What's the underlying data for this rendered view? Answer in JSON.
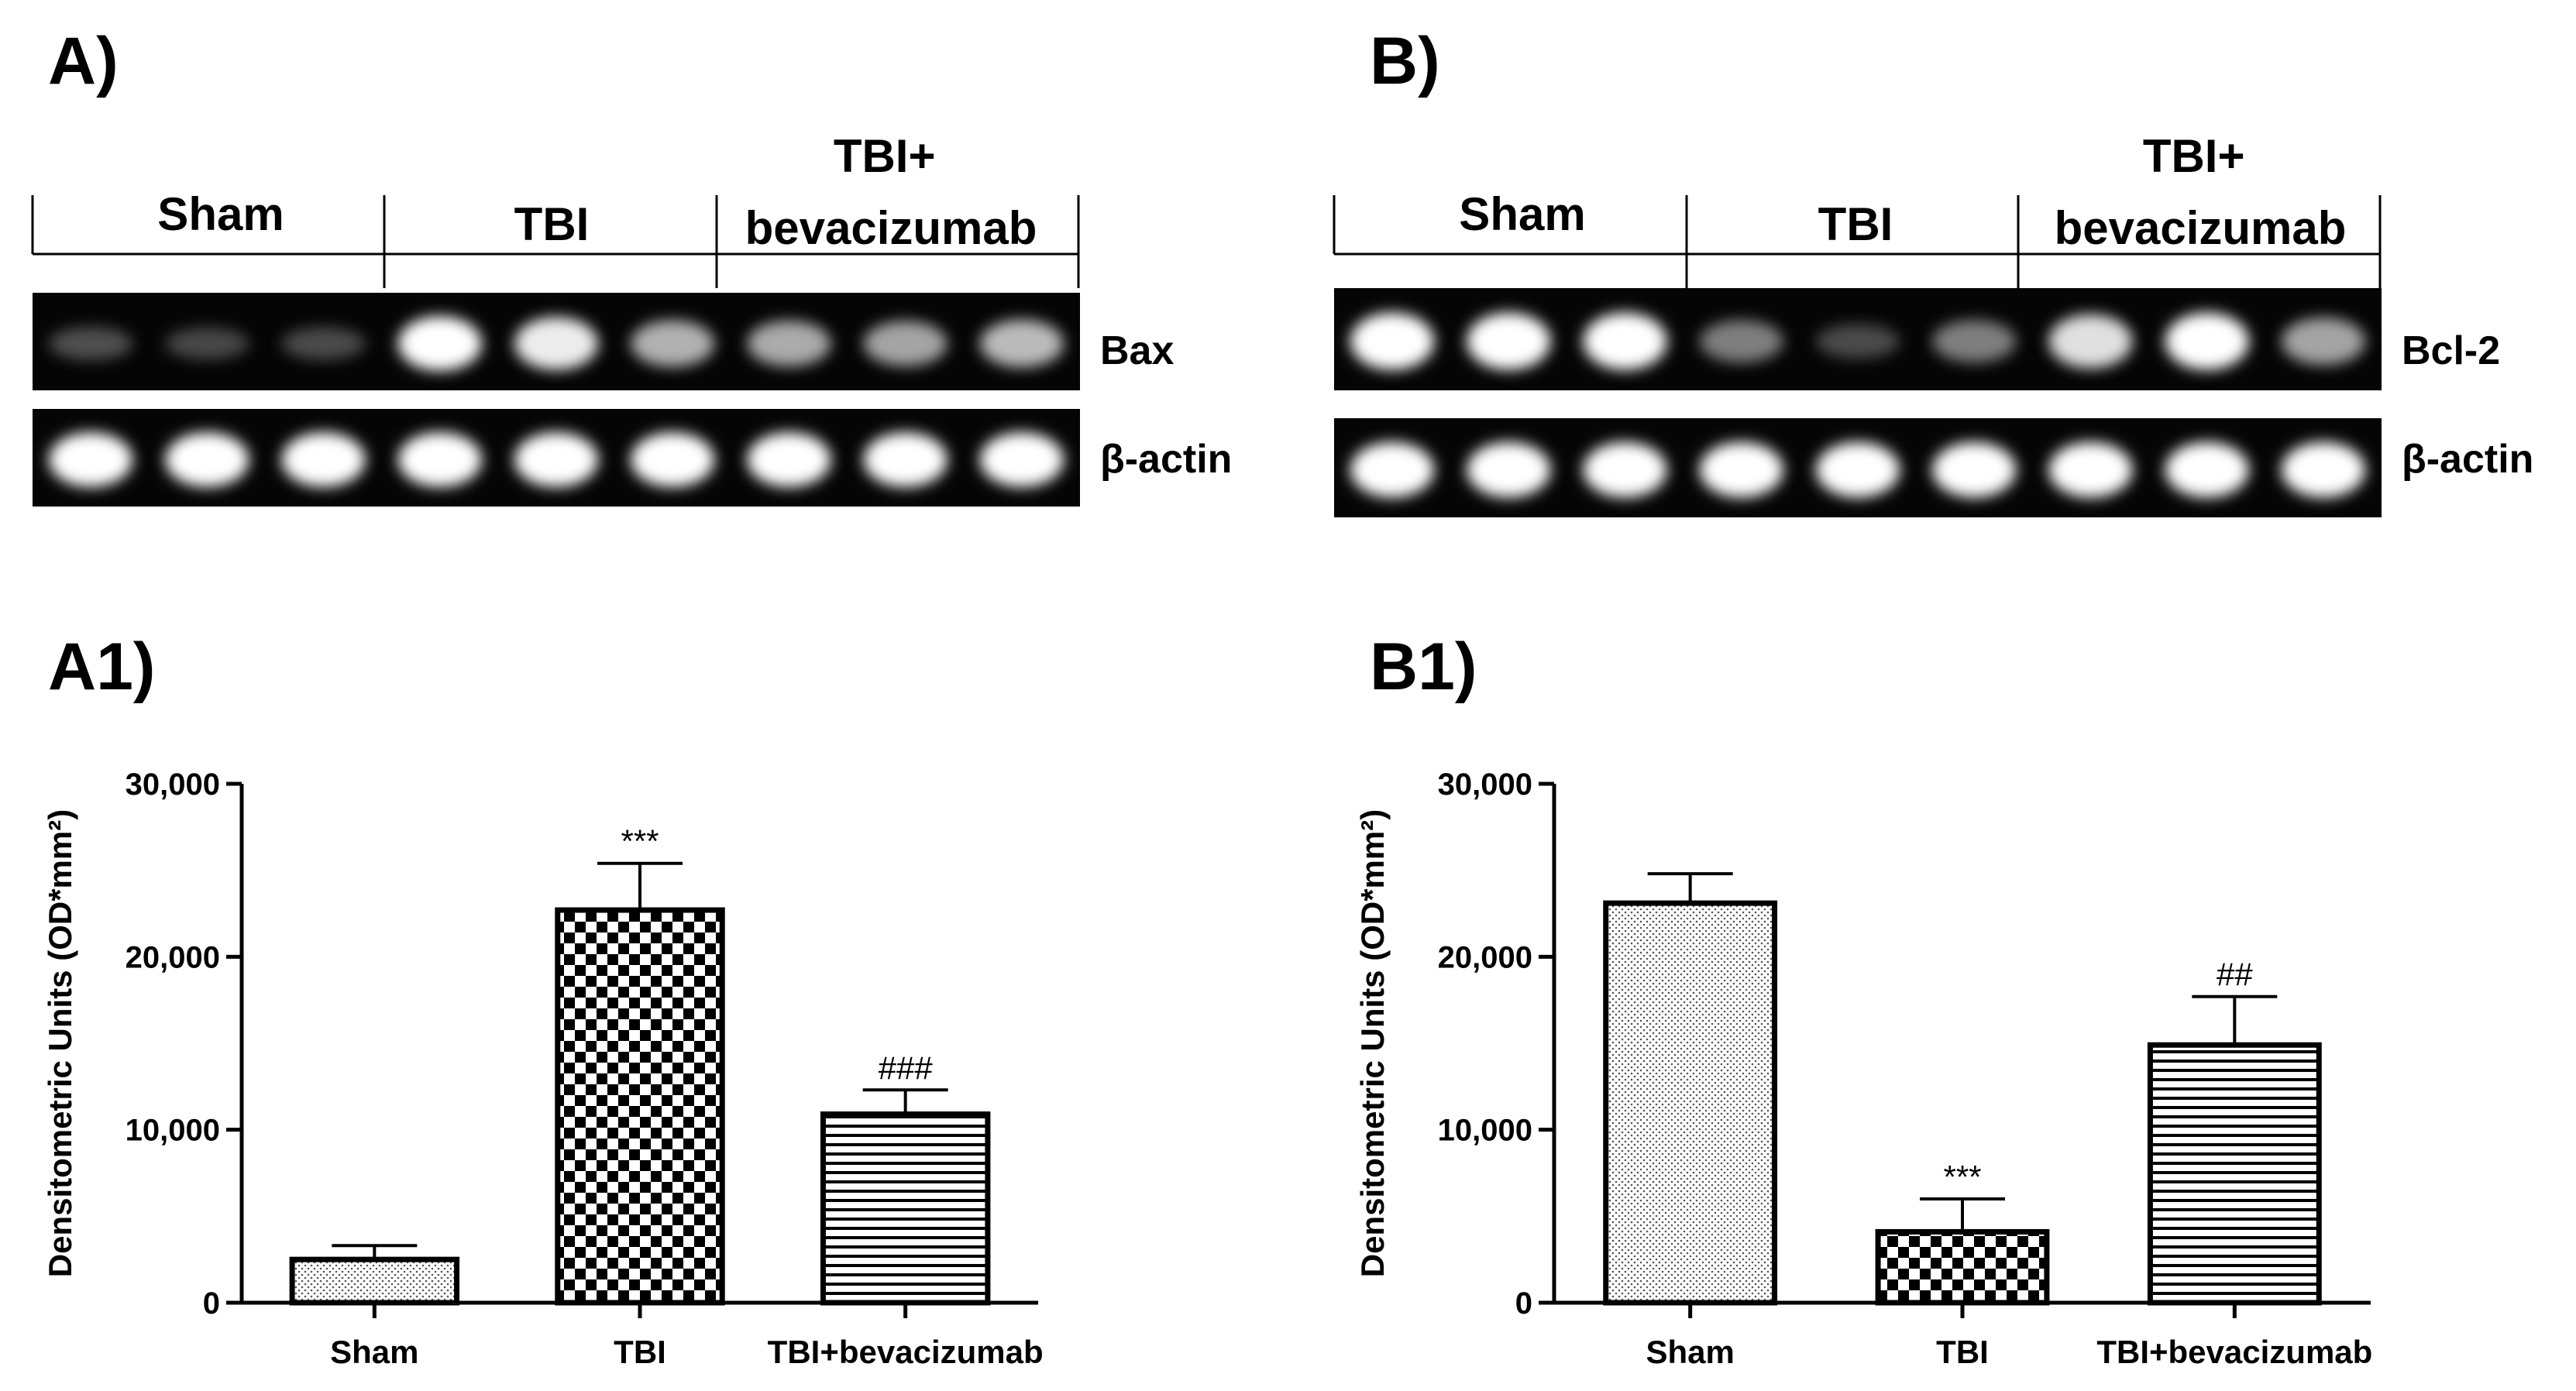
{
  "panels": {
    "A": {
      "label": "A)",
      "groups": [
        "Sham",
        "TBI",
        "TBI+\nbevacizumab"
      ],
      "top_gel": {
        "label": "Bax",
        "intensities": [
          0.32,
          0.28,
          0.3,
          1.0,
          0.95,
          0.75,
          0.72,
          0.7,
          0.78
        ]
      },
      "bottom_gel": {
        "label": "β-actin",
        "intensities": [
          1,
          1,
          1,
          1,
          1,
          1,
          1,
          1,
          1
        ]
      }
    },
    "B": {
      "label": "B)",
      "groups": [
        "Sham",
        "TBI",
        "TBI+\nbevacizumab"
      ],
      "top_gel": {
        "label": "Bcl-2",
        "intensities": [
          1.0,
          1.0,
          1.0,
          0.55,
          0.3,
          0.55,
          0.9,
          1.0,
          0.7
        ]
      },
      "bottom_gel": {
        "label": "β-actin",
        "intensities": [
          1,
          1,
          1,
          1,
          1,
          1,
          1,
          1,
          1
        ]
      }
    }
  },
  "chart_data": [
    {
      "panel_label": "A1)",
      "type": "bar",
      "categories": [
        "Sham",
        "TBI",
        "TBI+bevacizumab"
      ],
      "values": [
        2500,
        22700,
        10900
      ],
      "errors": [
        800,
        2700,
        1400
      ],
      "annotations": [
        "",
        "***",
        "###"
      ],
      "patterns": [
        "dots",
        "checker",
        "hlines"
      ],
      "ylabel": "Densitometric Units (OD*mm²)",
      "ylim": [
        0,
        30000
      ],
      "yticks": [
        0,
        10000,
        20000,
        30000
      ],
      "ytick_labels": [
        "0",
        "10,000",
        "20,000",
        "30,000"
      ]
    },
    {
      "panel_label": "B1)",
      "type": "bar",
      "categories": [
        "Sham",
        "TBI",
        "TBI+bevacizumab"
      ],
      "values": [
        23100,
        4100,
        14900
      ],
      "errors": [
        1700,
        1900,
        2800
      ],
      "annotations": [
        "",
        "***",
        "##"
      ],
      "patterns": [
        "dots",
        "checker",
        "hlines"
      ],
      "ylabel": "Densitometric Units (OD*mm²)",
      "ylim": [
        0,
        30000
      ],
      "yticks": [
        0,
        10000,
        20000,
        30000
      ],
      "ytick_labels": [
        "0",
        "10,000",
        "20,000",
        "30,000"
      ]
    }
  ]
}
